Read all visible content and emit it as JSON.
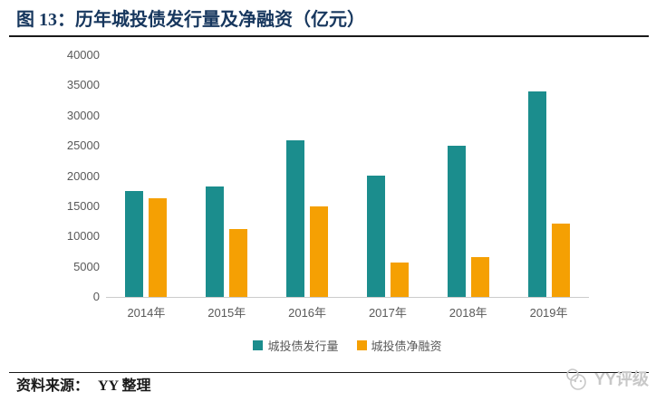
{
  "figure": {
    "title": "图 13：历年城投债发行量及净融资（亿元）",
    "source_label": "资料来源：",
    "source_value": "YY 整理",
    "watermark_text": "YY评级"
  },
  "colors": {
    "issuance_teal": "#1B8D8D",
    "net_financing_orange": "#F5A003",
    "title_navy": "#17375E",
    "axis_text_gray": "#595959",
    "axis_line_gray": "#CCCCCC",
    "rule_black": "#1A1A1A",
    "watermark_gray": "#C8C8C8"
  },
  "chart_data": {
    "type": "bar",
    "title": "历年城投债发行量及净融资（亿元）",
    "categories": [
      "2014年",
      "2015年",
      "2016年",
      "2017年",
      "2018年",
      "2019年"
    ],
    "series": [
      {
        "name": "城投债发行量",
        "color": "#1B8D8D",
        "values": [
          17600,
          18300,
          25900,
          20000,
          25000,
          34000
        ]
      },
      {
        "name": "城投债净融资",
        "color": "#F5A003",
        "values": [
          16300,
          11300,
          15000,
          5700,
          6600,
          12100
        ]
      }
    ],
    "xlabel": "",
    "ylabel": "",
    "ylim": [
      0,
      40000
    ],
    "yticks": [
      0,
      5000,
      10000,
      15000,
      20000,
      25000,
      30000,
      35000,
      40000
    ],
    "grid": false,
    "legend_position": "bottom"
  }
}
